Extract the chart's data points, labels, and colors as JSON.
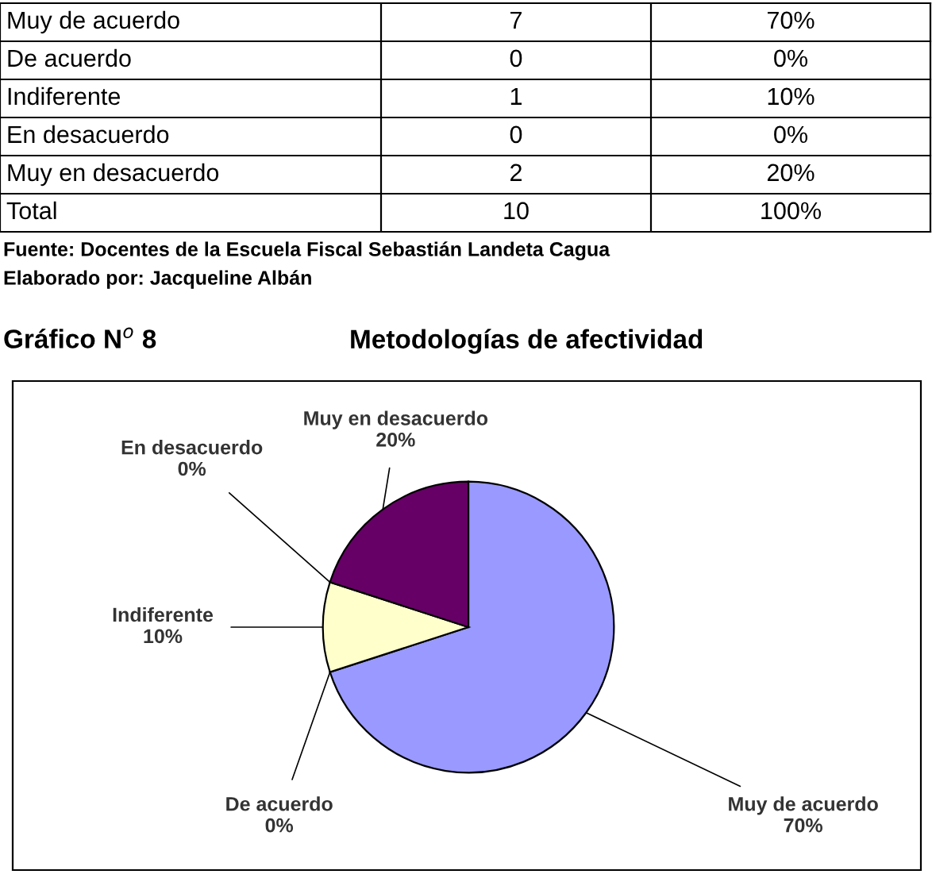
{
  "chart_data": {
    "type": "pie",
    "title": "Gráfico N$^{o}$ 8",
    "subtitle": "Metodologías de afectividad",
    "categories": [
      "Muy de acuerdo",
      "De acuerdo",
      "Indiferente",
      "En desacuerdo",
      "Muy en desacuerdo"
    ],
    "values": [
      70,
      0,
      10,
      0,
      20
    ],
    "value_labels": [
      "70%",
      "0%",
      "10%",
      "0%",
      "20%"
    ],
    "colors": [
      "#9999ff",
      "#660033",
      "#ffffcc",
      "#99ccff",
      "#660066"
    ],
    "totals": [
      "10",
      "100%"
    ],
    "annotations": [
      "7",
      "0",
      "1",
      "0",
      "2",
      "Total",
      "Fuente: Docentes de la Escuela Fiscal Sebastián Landeta Cagua",
      "Elaborado por: Jacqueline Albán"
    ],
    "legend": false
  }
}
